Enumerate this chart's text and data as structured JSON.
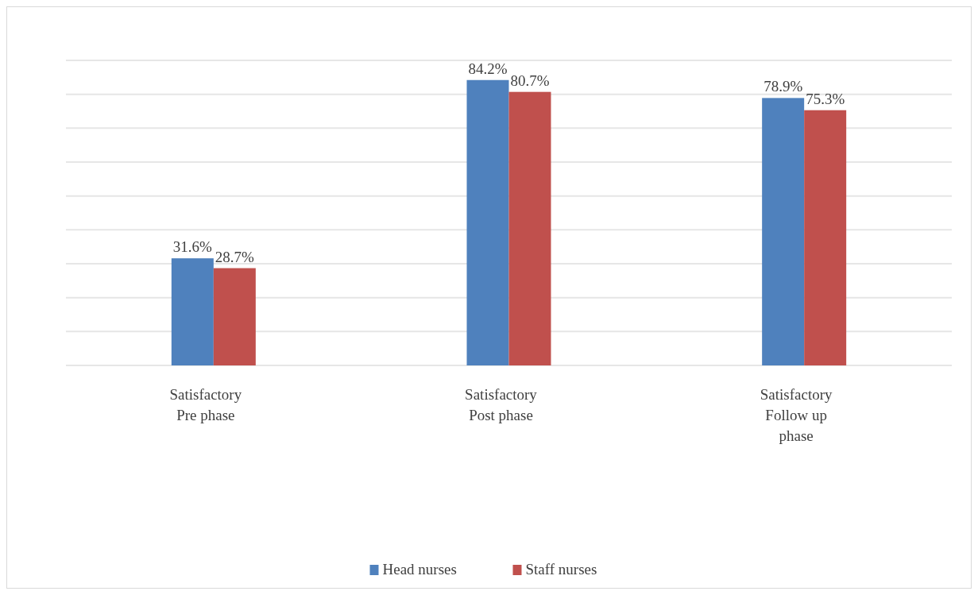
{
  "chart_data": {
    "type": "bar",
    "categories": [
      "Satisfactory Pre phase",
      "Satisfactory Post phase",
      "Satisfactory Follow up phase"
    ],
    "series": [
      {
        "name": "Head nurses",
        "color": "#4f81bd",
        "values": [
          31.6,
          84.2,
          78.9
        ],
        "value_labels": [
          "31.6%",
          "84.2%",
          "78.9%"
        ]
      },
      {
        "name": "Staff nurses",
        "color": "#c0504d",
        "values": [
          28.7,
          80.7,
          75.3
        ],
        "value_labels": [
          "28.7%",
          "80.7%",
          "75.3%"
        ]
      }
    ],
    "ylim": [
      0,
      90
    ],
    "yticks": [
      {
        "value": 0,
        "label": null
      },
      {
        "value": 10,
        "label": null
      },
      {
        "value": 20,
        "label": null
      },
      {
        "value": 30,
        "label": null
      },
      {
        "value": 40,
        "label": null
      },
      {
        "value": 50,
        "label": null
      },
      {
        "value": 60,
        "label": null
      },
      {
        "value": 70,
        "label": null
      },
      {
        "value": 80,
        "label": null
      },
      {
        "value": 90,
        "label": null
      }
    ],
    "grid": "y",
    "legend": "bottom"
  }
}
